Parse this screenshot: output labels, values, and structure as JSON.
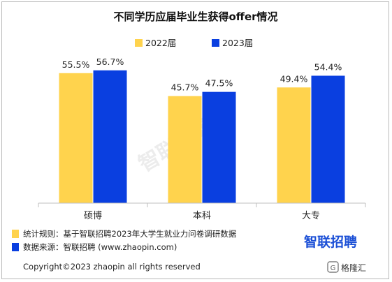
{
  "chart_data": {
    "type": "bar",
    "title": "不同学历应届毕业生获得offer情况",
    "categories": [
      "硕博",
      "本科",
      "大专"
    ],
    "series": [
      {
        "name": "2022届",
        "values": [
          55.5,
          45.7,
          49.4
        ],
        "labels": [
          "55.5%",
          "45.7%",
          "49.4%"
        ]
      },
      {
        "name": "2023届",
        "values": [
          56.7,
          47.5,
          54.4
        ],
        "labels": [
          "56.7%",
          "47.5%",
          "54.4%"
        ]
      }
    ],
    "xlabel": "",
    "ylabel": "",
    "ylim": [
      0,
      60
    ],
    "grid": false,
    "legend": "top"
  },
  "colors": {
    "series_2022": "#ffd34d",
    "series_2023": "#0a3fe0",
    "brand": "#1b4fd6"
  },
  "watermark": "智联招聘",
  "notes": [
    {
      "text": "统计规则：基于智联招聘2023年大学生就业力问卷调研数据",
      "color": "#ffd34d"
    },
    {
      "text": "数据来源：智联招聘 (www.zhaopin.com)",
      "color": "#0a3fe0"
    }
  ],
  "brand_logo": "智联招聘",
  "copyright": "Copyright©2023 zhaopin all rights reserved",
  "corner_brand": "格隆汇"
}
